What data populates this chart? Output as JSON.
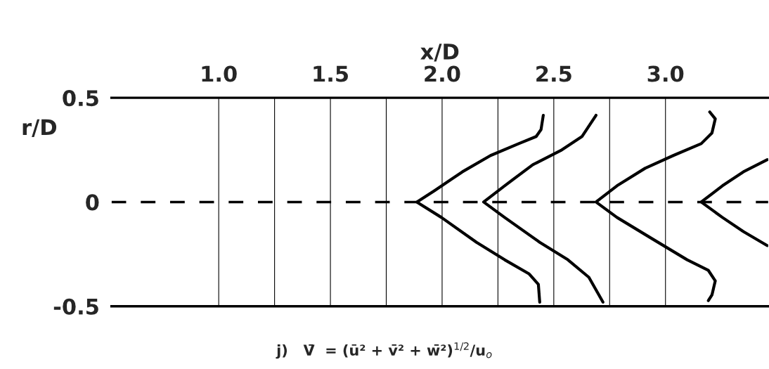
{
  "chart_data": {
    "type": "line",
    "xlabel": "x/D",
    "ylabel": "r/D",
    "xlim": [
      0.52,
      3.46
    ],
    "ylim": [
      -0.5,
      0.5
    ],
    "xticks": [
      {
        "value": 1,
        "label": "1.0"
      },
      {
        "value": 1.25,
        "label": null
      },
      1.5,
      {
        "value": 1.75,
        "label": null
      },
      {
        "value": 2,
        "label": "2.0"
      },
      {
        "value": 2.25,
        "label": null
      },
      2.5,
      {
        "value": 2.75,
        "label": null
      },
      {
        "value": 3,
        "label": "3.0"
      }
    ],
    "yticks": [
      -0.5,
      0,
      0.5
    ],
    "grid": "x",
    "ref_lines": [
      {
        "axis": "y",
        "value": 0,
        "line_style": "dashed",
        "color": "#000000"
      }
    ],
    "annotations": [
      "j)   V̄  = (ū² + v̄² + w̄²)$^{1/2}$/u$_{o}$"
    ],
    "series": [
      {
        "color": "#000000",
        "x": [
          2.453,
          2.443,
          2.421,
          2.343,
          2.217,
          2.091,
          1.965,
          1.887,
          1.997,
          2.154,
          2.28,
          2.39,
          2.431,
          2.437
        ],
        "values": [
          0.416,
          0.348,
          0.314,
          0.28,
          0.223,
          0.145,
          0.054,
          0,
          -0.074,
          -0.193,
          -0.277,
          -0.345,
          -0.395,
          -0.48
        ]
      },
      {
        "color": "#000000",
        "x": [
          2.689,
          2.626,
          2.531,
          2.406,
          2.28,
          2.186,
          2.28,
          2.437,
          2.563,
          2.657,
          2.72
        ],
        "values": [
          0.416,
          0.314,
          0.247,
          0.179,
          0.078,
          0,
          -0.074,
          -0.193,
          -0.277,
          -0.361,
          -0.48
        ]
      },
      {
        "color": "#000000",
        "x": [
          3.198,
          3.223,
          3.208,
          3.16,
          3.035,
          2.909,
          2.783,
          2.689,
          2.783,
          2.94,
          3.097,
          3.192,
          3.223,
          3.208,
          3.192
        ],
        "values": [
          0.432,
          0.399,
          0.331,
          0.28,
          0.223,
          0.162,
          0.078,
          0,
          -0.074,
          -0.176,
          -0.277,
          -0.328,
          -0.378,
          -0.446,
          -0.473
        ]
      },
      {
        "color": "#000000",
        "x": [
          3.456,
          3.349,
          3.255,
          3.16,
          3.255,
          3.349,
          3.456
        ],
        "values": [
          0.203,
          0.145,
          0.078,
          0,
          -0.074,
          -0.142,
          -0.209
        ]
      }
    ]
  }
}
